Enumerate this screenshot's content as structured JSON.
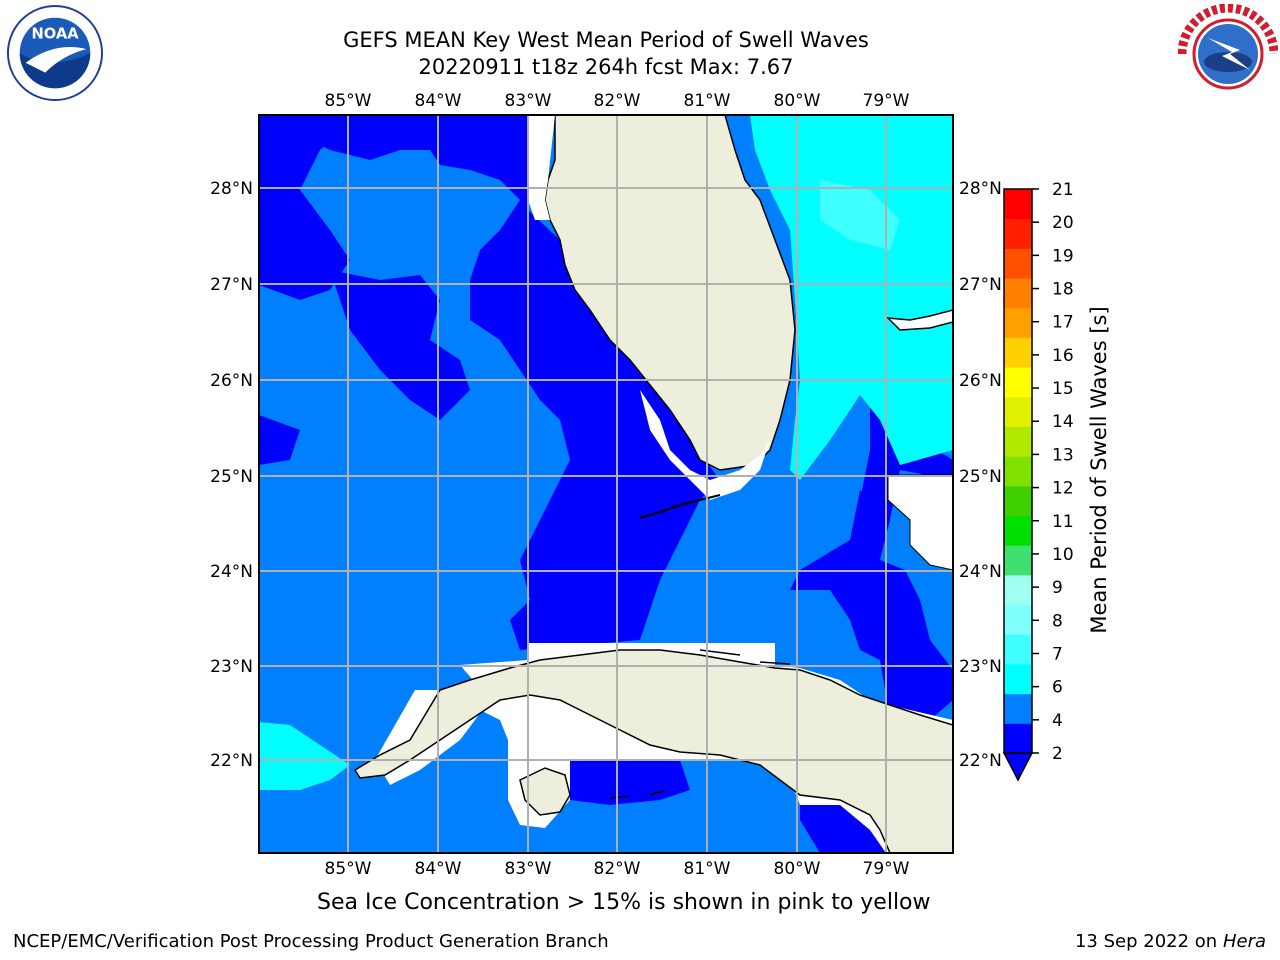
{
  "title": {
    "line1": "GEFS MEAN Key West Mean Period of Swell Waves",
    "line2": "20220911 t18z 264h fcst   Max: 7.67"
  },
  "logos": {
    "left": "NOAA",
    "left_ring_text": "NATIONAL OCEANIC AND ATMOSPHERIC ADMINISTRATION",
    "left_bottom_text": "U.S. DEPARTMENT OF COMMERCE",
    "right_ring_text": "NATIONAL WEATHER SERVICE"
  },
  "map": {
    "lon_labels": [
      "85°W",
      "84°W",
      "83°W",
      "82°W",
      "81°W",
      "80°W",
      "79°W"
    ],
    "lat_labels": [
      "28°N",
      "27°N",
      "26°N",
      "25°N",
      "24°N",
      "23°N",
      "22°N"
    ],
    "land_color": "#eeeedd",
    "grid_color": "#b0b0b0"
  },
  "colorbar": {
    "label": "Mean Period of Swell Waves [s]",
    "ticks": [
      "2",
      "4",
      "6",
      "7",
      "8",
      "9",
      "10",
      "11",
      "12",
      "13",
      "14",
      "15",
      "16",
      "17",
      "18",
      "19",
      "20",
      "21"
    ],
    "colors": [
      "#0000ff",
      "#0080ff",
      "#00ffff",
      "#40ffff",
      "#80ffff",
      "#a0fff0",
      "#40e070",
      "#00e000",
      "#40d000",
      "#80e000",
      "#b0e800",
      "#e0f000",
      "#ffff00",
      "#ffd000",
      "#ffa000",
      "#ff8000",
      "#ff5000",
      "#ff2000",
      "#ff0000"
    ],
    "under_color": "#0000ff"
  },
  "footer": {
    "ice_note": "Sea Ice Concentration > 15% is shown in pink to yellow",
    "credit_left": "NCEP/EMC/Verification Post Processing Product Generation Branch",
    "credit_date": "13 Sep 2022 on",
    "credit_host": "Hera"
  }
}
